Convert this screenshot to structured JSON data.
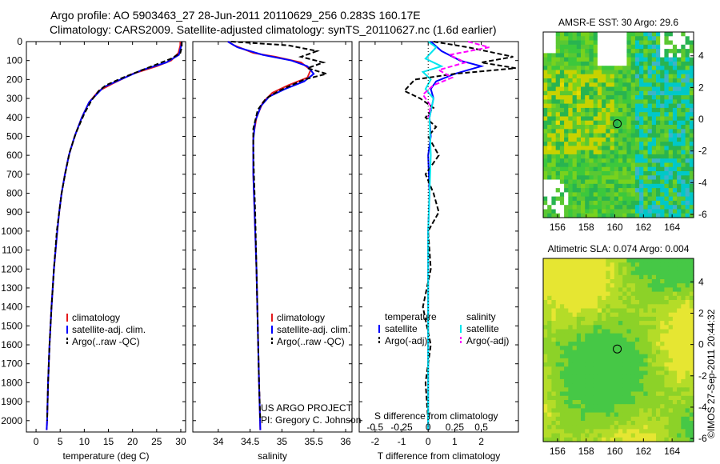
{
  "header": {
    "title_line1": "Argo profile: AO 5903463_27 28-Jun-2011 20110629_256 0.283S 160.17E",
    "title_line2": "Climatology: CARS2009. Satellite-adjusted climatology: synTS_20110627.nc (1.6d earlier)"
  },
  "footer": {
    "project_line1": "US ARGO PROJECT",
    "project_line2": "PI: Gregory C. Johnson",
    "imos_stamp": "©IMOS 27-Sep-2011 20:44:32"
  },
  "colors": {
    "climatology": "#e41a1c",
    "satellite": "#0000ff",
    "argo": "#000000",
    "salinity_sat": "#00e5ee",
    "salinity_argo": "#ff00ff"
  },
  "chart_data": [
    {
      "id": "temperature",
      "type": "line",
      "xlabel": "temperature (deg C)",
      "xlim": [
        -2,
        31
      ],
      "xticks": [
        0,
        5,
        10,
        15,
        20,
        25,
        30
      ],
      "ylim": [
        0,
        2060
      ],
      "yticks": [
        0,
        100,
        200,
        300,
        400,
        500,
        600,
        700,
        800,
        900,
        1000,
        1100,
        1200,
        1300,
        1400,
        1500,
        1600,
        1700,
        1800,
        1900,
        2000
      ],
      "legend": [
        "climatology",
        "satellite-adj. clim.",
        "Argo(..raw -QC)"
      ],
      "series": [
        {
          "name": "climatology",
          "color": "#e41a1c",
          "dash": "",
          "points": [
            [
              29.9,
              0
            ],
            [
              29.9,
              20
            ],
            [
              29.5,
              60
            ],
            [
              28,
              100
            ],
            [
              25,
              130
            ],
            [
              20,
              170
            ],
            [
              16,
              220
            ],
            [
              13,
              260
            ],
            [
              11,
              320
            ],
            [
              9.5,
              400
            ],
            [
              8,
              500
            ],
            [
              6.8,
              600
            ],
            [
              6,
              700
            ],
            [
              5.3,
              800
            ],
            [
              4.8,
              900
            ],
            [
              4.4,
              1000
            ],
            [
              3.7,
              1200
            ],
            [
              3.2,
              1400
            ],
            [
              2.8,
              1600
            ],
            [
              2.5,
              1800
            ],
            [
              2.3,
              2000
            ],
            [
              2.2,
              2050
            ]
          ]
        },
        {
          "name": "satellite-adj. clim.",
          "color": "#0000ff",
          "dash": "",
          "points": [
            [
              30.2,
              0
            ],
            [
              30.1,
              20
            ],
            [
              29.6,
              70
            ],
            [
              27,
              110
            ],
            [
              22,
              150
            ],
            [
              17.5,
              200
            ],
            [
              14,
              240
            ],
            [
              12.5,
              280
            ],
            [
              11,
              320
            ],
            [
              9.5,
              400
            ],
            [
              8,
              500
            ],
            [
              6.8,
              600
            ],
            [
              6,
              700
            ],
            [
              5.3,
              800
            ],
            [
              4.8,
              900
            ],
            [
              4.4,
              1000
            ],
            [
              3.7,
              1200
            ],
            [
              3.2,
              1400
            ],
            [
              2.8,
              1600
            ],
            [
              2.5,
              1800
            ],
            [
              2.3,
              2000
            ],
            [
              2.2,
              2050
            ]
          ]
        },
        {
          "name": "Argo(..raw -QC)",
          "color": "#000000",
          "dash": "6,3",
          "points": [
            [
              30.2,
              0
            ],
            [
              30.2,
              30
            ],
            [
              29.9,
              60
            ],
            [
              28,
              90
            ],
            [
              24,
              130
            ],
            [
              18,
              190
            ],
            [
              14.5,
              230
            ],
            [
              13,
              260
            ],
            [
              11.5,
              310
            ],
            [
              10,
              380
            ],
            [
              8.3,
              480
            ],
            [
              7,
              580
            ],
            [
              6.1,
              690
            ],
            [
              5.3,
              800
            ],
            [
              4.8,
              900
            ],
            [
              4.3,
              1000
            ],
            [
              3.7,
              1200
            ],
            [
              3.2,
              1400
            ],
            [
              2.8,
              1600
            ],
            [
              2.5,
              1800
            ],
            [
              2.3,
              2000
            ]
          ]
        }
      ]
    },
    {
      "id": "salinity",
      "type": "line",
      "xlabel": "salinity",
      "xlim": [
        33.6,
        36.1
      ],
      "xticks": [
        34,
        34.5,
        35,
        35.5,
        36
      ],
      "ylim": [
        0,
        2060
      ],
      "legend": [
        "climatology",
        "satellite-adj. clim.",
        "Argo(..raw -QC)"
      ],
      "series": [
        {
          "name": "climatology",
          "color": "#e41a1c",
          "dash": "",
          "points": [
            [
              34.15,
              0
            ],
            [
              34.25,
              20
            ],
            [
              34.55,
              60
            ],
            [
              34.9,
              80
            ],
            [
              35.3,
              110
            ],
            [
              35.45,
              150
            ],
            [
              35.4,
              190
            ],
            [
              35.1,
              230
            ],
            [
              34.85,
              270
            ],
            [
              34.7,
              320
            ],
            [
              34.6,
              400
            ],
            [
              34.55,
              500
            ],
            [
              34.55,
              700
            ],
            [
              34.57,
              900
            ],
            [
              34.6,
              1200
            ],
            [
              34.62,
              1500
            ],
            [
              34.64,
              1800
            ],
            [
              34.66,
              2050
            ]
          ]
        },
        {
          "name": "satellite-adj. clim.",
          "color": "#0000ff",
          "dash": "",
          "points": [
            [
              34.15,
              0
            ],
            [
              34.3,
              30
            ],
            [
              34.7,
              70
            ],
            [
              35.15,
              100
            ],
            [
              35.4,
              130
            ],
            [
              35.5,
              170
            ],
            [
              35.35,
              210
            ],
            [
              35.05,
              250
            ],
            [
              34.8,
              290
            ],
            [
              34.67,
              340
            ],
            [
              34.58,
              420
            ],
            [
              34.55,
              520
            ],
            [
              34.55,
              700
            ],
            [
              34.57,
              900
            ],
            [
              34.6,
              1200
            ],
            [
              34.62,
              1500
            ],
            [
              34.64,
              1800
            ],
            [
              34.66,
              2050
            ]
          ]
        },
        {
          "name": "Argo(..raw -QC)",
          "color": "#000000",
          "dash": "6,3",
          "points": [
            [
              34.2,
              0
            ],
            [
              35.1,
              20
            ],
            [
              35.55,
              50
            ],
            [
              35.3,
              80
            ],
            [
              35.65,
              110
            ],
            [
              35.4,
              140
            ],
            [
              35.7,
              170
            ],
            [
              35.35,
              200
            ],
            [
              35.15,
              230
            ],
            [
              34.95,
              260
            ],
            [
              34.75,
              300
            ],
            [
              34.62,
              360
            ],
            [
              34.55,
              460
            ],
            [
              34.55,
              560
            ],
            [
              34.56,
              700
            ],
            [
              34.58,
              900
            ],
            [
              34.6,
              1200
            ],
            [
              34.62,
              1500
            ],
            [
              34.64,
              1800
            ],
            [
              34.66,
              2000
            ]
          ]
        }
      ]
    },
    {
      "id": "difference",
      "type": "line",
      "xlabel": "T difference from climatology",
      "xlabel2": "S difference from climatology",
      "xlim": [
        -2.6,
        3.4
      ],
      "xticks": [
        -2,
        -1,
        0,
        1,
        2
      ],
      "s_xticks": [
        "-0.5",
        "-0.25",
        "0",
        "0.25",
        "0.5"
      ],
      "s_xtick_positions": [
        -2,
        -1,
        0,
        1,
        2
      ],
      "ylim": [
        0,
        2060
      ],
      "legend_headers": [
        "temperature",
        "salinity"
      ],
      "legend": [
        "satellite",
        "Argo(-adj)",
        "satellite",
        "Argo(-adj)"
      ],
      "series": [
        {
          "name": "satellite",
          "color": "#0000ff",
          "dash": "",
          "points": [
            [
              0.1,
              0
            ],
            [
              0.5,
              50
            ],
            [
              1.2,
              100
            ],
            [
              2,
              130
            ],
            [
              1,
              170
            ],
            [
              0.3,
              210
            ],
            [
              0.1,
              250
            ],
            [
              0.2,
              300
            ],
            [
              0.05,
              400
            ],
            [
              0.1,
              500
            ],
            [
              0,
              600
            ],
            [
              0.05,
              800
            ],
            [
              0,
              1000
            ],
            [
              0,
              1500
            ],
            [
              0,
              2050
            ]
          ]
        },
        {
          "name": "Argo(-adj)",
          "color": "#000000",
          "dash": "6,3",
          "points": [
            [
              0.2,
              0
            ],
            [
              1.5,
              30
            ],
            [
              3.2,
              80
            ],
            [
              2,
              110
            ],
            [
              3.3,
              140
            ],
            [
              1,
              170
            ],
            [
              -0.5,
              200
            ],
            [
              -0.9,
              260
            ],
            [
              -0.3,
              300
            ],
            [
              0.2,
              350
            ],
            [
              -0.1,
              400
            ],
            [
              0.3,
              450
            ],
            [
              0,
              500
            ],
            [
              0.4,
              600
            ],
            [
              -0.1,
              700
            ],
            [
              0.2,
              800
            ],
            [
              0.4,
              900
            ],
            [
              0,
              1000
            ],
            [
              0.1,
              1200
            ],
            [
              -0.2,
              1400
            ],
            [
              0.1,
              1600
            ],
            [
              -0.1,
              1800
            ],
            [
              0,
              2000
            ]
          ]
        },
        {
          "name": "satellite",
          "color": "#00e5ee",
          "dash": "",
          "points": [
            [
              0,
              0
            ],
            [
              0.3,
              30
            ],
            [
              -0.1,
              90
            ],
            [
              0.5,
              130
            ],
            [
              -0.2,
              160
            ],
            [
              0.1,
              200
            ],
            [
              -0.1,
              250
            ],
            [
              0.2,
              300
            ],
            [
              0.05,
              400
            ],
            [
              0.1,
              600
            ],
            [
              0.05,
              800
            ],
            [
              0,
              1000
            ],
            [
              0,
              1500
            ],
            [
              0,
              2050
            ]
          ]
        },
        {
          "name": "Argo(-adj)",
          "color": "#ff00ff",
          "dash": "6,3",
          "points": [
            [
              1.5,
              0
            ],
            [
              2.3,
              30
            ],
            [
              0.8,
              70
            ],
            [
              1.4,
              110
            ],
            [
              0.4,
              150
            ],
            [
              0.9,
              190
            ],
            [
              0.2,
              230
            ],
            [
              -0.2,
              280
            ],
            [
              0.1,
              340
            ],
            [
              0,
              400
            ]
          ]
        }
      ]
    },
    {
      "id": "sst_map",
      "type": "heatmap",
      "title": "AMSR-E SST: 30 Argo: 29.6",
      "xticks": [
        156,
        158,
        160,
        162,
        164
      ],
      "yticks": [
        4,
        2,
        0,
        -2,
        -4,
        -6
      ],
      "xlim": [
        155,
        165.5
      ],
      "ylim": [
        -6.2,
        5.5
      ],
      "marker": [
        160.17,
        -0.283
      ]
    },
    {
      "id": "sla_map",
      "type": "heatmap",
      "title": "Altimetric SLA: 0.074 Argo: 0.004",
      "xticks": [
        156,
        158,
        160,
        162,
        164
      ],
      "yticks": [
        4,
        2,
        0,
        -2,
        -4,
        -6
      ],
      "xlim": [
        155,
        165.5
      ],
      "ylim": [
        -6.2,
        5.5
      ],
      "marker": [
        160.17,
        -0.283
      ]
    }
  ]
}
